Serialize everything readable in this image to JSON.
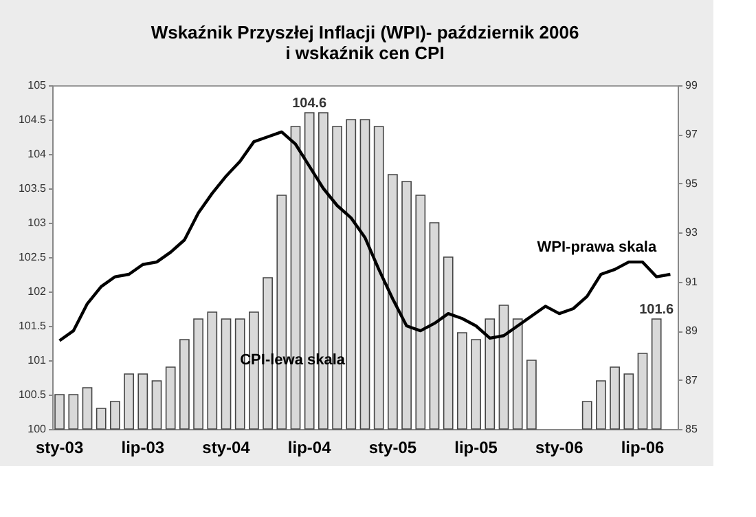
{
  "chart_data": {
    "type": "bar",
    "title": "Wskaźnik Przyszłej Inflacji (WPI)- październik 2006\ni wskaźnik cen CPI",
    "categories": [
      "sty-03",
      null,
      null,
      null,
      null,
      null,
      "lip-03",
      null,
      null,
      null,
      null,
      null,
      "sty-04",
      null,
      null,
      null,
      null,
      null,
      "lip-04",
      null,
      null,
      null,
      null,
      null,
      "sty-05",
      null,
      null,
      null,
      null,
      null,
      "lip-05",
      null,
      null,
      null,
      null,
      null,
      "sty-06",
      null,
      null,
      null,
      null,
      null,
      "lip-06",
      null,
      null
    ],
    "series": [
      {
        "name": "CPI-lewa skala",
        "color": "#d9d9d9",
        "values": [
          100.5,
          100.5,
          100.6,
          100.3,
          100.4,
          100.8,
          100.8,
          100.7,
          100.9,
          101.3,
          101.6,
          101.7,
          101.6,
          101.6,
          101.7,
          102.2,
          103.4,
          104.4,
          104.6,
          104.6,
          104.4,
          104.5,
          104.5,
          104.4,
          103.7,
          103.6,
          103.4,
          103.0,
          102.5,
          101.4,
          101.3,
          101.6,
          101.8,
          101.6,
          101.0,
          null,
          null,
          null,
          100.4,
          100.7,
          100.9,
          100.8,
          101.1,
          101.6,
          null
        ],
        "value_labels": [
          null,
          null,
          null,
          null,
          null,
          null,
          null,
          null,
          null,
          null,
          null,
          null,
          null,
          null,
          null,
          null,
          null,
          null,
          "104.6",
          null,
          null,
          null,
          null,
          null,
          null,
          null,
          null,
          null,
          null,
          null,
          null,
          null,
          null,
          null,
          null,
          null,
          null,
          null,
          null,
          null,
          null,
          null,
          null,
          "101.6",
          null
        ]
      },
      {
        "name": "WPI-prawa skala",
        "type": "line",
        "axis": "y2",
        "color": "#000000",
        "values": [
          88.6,
          89.0,
          90.1,
          90.8,
          91.2,
          91.3,
          91.7,
          91.8,
          92.2,
          92.7,
          93.8,
          94.6,
          95.3,
          95.9,
          96.7,
          96.9,
          97.1,
          96.6,
          95.7,
          94.8,
          94.1,
          93.6,
          92.8,
          91.5,
          90.3,
          89.2,
          89.0,
          89.3,
          89.7,
          89.5,
          89.2,
          88.7,
          88.8,
          89.2,
          89.6,
          90.0,
          89.7,
          89.9,
          90.4,
          91.3,
          91.5,
          91.8,
          91.8,
          91.2,
          91.3
        ]
      }
    ],
    "ylim": [
      100,
      105
    ],
    "yticks": [
      100,
      100.5,
      101,
      101.5,
      102,
      102.5,
      103,
      103.5,
      104,
      104.5,
      105
    ],
    "y2lim": [
      85,
      99
    ],
    "y2ticks": [
      85,
      87,
      89,
      91,
      93,
      95,
      97,
      99
    ]
  }
}
